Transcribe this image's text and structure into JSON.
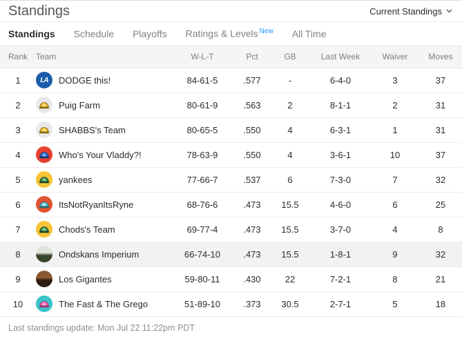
{
  "page": {
    "title": "Standings",
    "view_selector_label": "Current Standings",
    "last_update": "Last standings update: Mon Jul 22 11:22pm PDT"
  },
  "tabs": [
    {
      "label": "Standings",
      "active": true
    },
    {
      "label": "Schedule",
      "active": false
    },
    {
      "label": "Playoffs",
      "active": false
    },
    {
      "label": "Ratings & Levels",
      "active": false,
      "badge": "New"
    },
    {
      "label": "All Time",
      "active": false
    }
  ],
  "colors": {
    "new_badge_blue": "#1a8fff",
    "header_bg": "#f5f5f5",
    "highlight_row_bg": "#f2f2f2"
  },
  "table": {
    "columns": [
      "Rank",
      "Team",
      "W-L-T",
      "Pct",
      "GB",
      "Last Week",
      "Waiver",
      "Moves"
    ],
    "rows": [
      {
        "rank": "1",
        "team": "DODGE this!",
        "wlt": "84-61-5",
        "pct": ".577",
        "gb": "-",
        "last_week": "6-4-0",
        "waiver": "3",
        "moves": "37",
        "highlight": false,
        "avatar": {
          "kind": "monogram",
          "icon": "la-dodgers-logo-icon",
          "bg": "#1b5dab",
          "text": "LA"
        }
      },
      {
        "rank": "2",
        "team": "Puig Farm",
        "wlt": "80-61-9",
        "pct": ".563",
        "gb": "2",
        "last_week": "8-1-1",
        "waiver": "2",
        "moves": "31",
        "highlight": false,
        "avatar": {
          "kind": "cap",
          "icon": "baseball-cap-icon",
          "bg": "#e8e8e8",
          "cap": "#f2c12e",
          "capDark": "#8f6c13",
          "capLight": "#fadf7e"
        }
      },
      {
        "rank": "3",
        "team": "SHABBS's Team",
        "wlt": "80-65-5",
        "pct": ".550",
        "gb": "4",
        "last_week": "6-3-1",
        "waiver": "1",
        "moves": "31",
        "highlight": false,
        "avatar": {
          "kind": "cap",
          "icon": "baseball-cap-icon",
          "bg": "#e8e8e8",
          "cap": "#f2c12e",
          "capDark": "#8f6c13",
          "capLight": "#fadf7e"
        }
      },
      {
        "rank": "4",
        "team": "Who's Your Vladdy?!",
        "wlt": "78-63-9",
        "pct": ".550",
        "gb": "4",
        "last_week": "3-6-1",
        "waiver": "10",
        "moves": "37",
        "highlight": false,
        "avatar": {
          "kind": "cap",
          "icon": "baseball-cap-icon",
          "bg": "#e8402f",
          "cap": "#2f6fd0",
          "capDark": "#173a78",
          "capLight": "#7aa8ec"
        }
      },
      {
        "rank": "5",
        "team": "yankees",
        "wlt": "77-66-7",
        "pct": ".537",
        "gb": "6",
        "last_week": "7-3-0",
        "waiver": "7",
        "moves": "32",
        "highlight": false,
        "avatar": {
          "kind": "cap",
          "icon": "baseball-cap-icon",
          "bg": "#f7c437",
          "cap": "#3c8f4e",
          "capDark": "#1d4a27",
          "capLight": "#84c788"
        }
      },
      {
        "rank": "6",
        "team": "ItsNotRyanItsRyne",
        "wlt": "68-76-6",
        "pct": ".473",
        "gb": "15.5",
        "last_week": "4-6-0",
        "waiver": "6",
        "moves": "25",
        "highlight": false,
        "avatar": {
          "kind": "cap",
          "icon": "baseball-cap-icon",
          "bg": "#e05330",
          "cap": "#67cbdc",
          "capDark": "#2c6d7a",
          "capLight": "#aee8f2"
        }
      },
      {
        "rank": "7",
        "team": "Chods's Team",
        "wlt": "69-77-4",
        "pct": ".473",
        "gb": "15.5",
        "last_week": "3-7-0",
        "waiver": "4",
        "moves": "8",
        "highlight": false,
        "avatar": {
          "kind": "cap",
          "icon": "baseball-cap-icon",
          "bg": "#f7c437",
          "cap": "#3c8f4e",
          "capDark": "#1d4a27",
          "capLight": "#84c788"
        }
      },
      {
        "rank": "8",
        "team": "Ondskans Imperium",
        "wlt": "66-74-10",
        "pct": ".473",
        "gb": "15.5",
        "last_week": "1-8-1",
        "waiver": "9",
        "moves": "32",
        "highlight": true,
        "avatar": {
          "kind": "photo",
          "icon": "custom-photo-avatar",
          "photoTop": "#dfe3dd",
          "photoBottom": "#38462f"
        }
      },
      {
        "rank": "9",
        "team": "Los Gigantes",
        "wlt": "59-80-11",
        "pct": ".430",
        "gb": "22",
        "last_week": "7-2-1",
        "waiver": "8",
        "moves": "21",
        "highlight": false,
        "avatar": {
          "kind": "photo",
          "icon": "custom-photo-avatar",
          "photoTop": "#8a5a33",
          "photoBottom": "#2e1d12"
        }
      },
      {
        "rank": "10",
        "team": "The Fast & The Grego",
        "wlt": "51-89-10",
        "pct": ".373",
        "gb": "30.5",
        "last_week": "2-7-1",
        "waiver": "5",
        "moves": "18",
        "highlight": false,
        "avatar": {
          "kind": "cap",
          "icon": "baseball-cap-icon",
          "bg": "#3ac4c9",
          "cap": "#f165b5",
          "capDark": "#a03374",
          "capLight": "#f9aed7"
        }
      }
    ]
  }
}
